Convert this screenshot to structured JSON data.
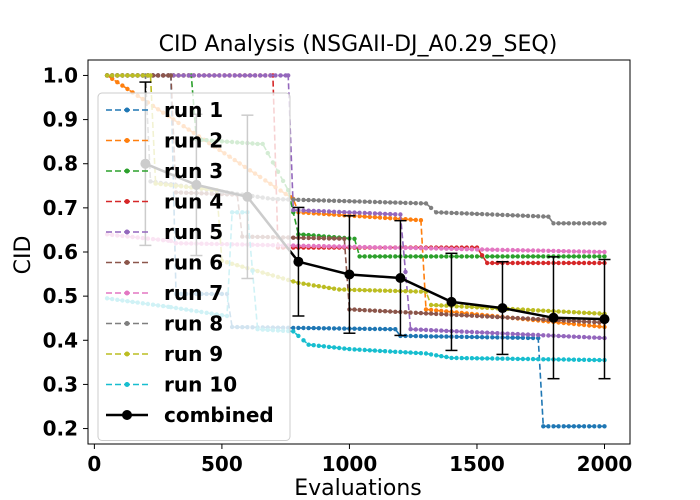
{
  "chart_data": {
    "type": "line",
    "title": "CID Analysis (NSGAII-DJ_A0.29_SEQ)",
    "xlabel": "Evaluations",
    "ylabel": "CID",
    "xlim": [
      -25,
      2100
    ],
    "ylim": [
      0.165,
      1.035
    ],
    "xticks": [
      0,
      500,
      1000,
      1500,
      2000
    ],
    "xtick_labels": [
      "0",
      "500",
      "1000",
      "1500",
      "2000"
    ],
    "yticks": [
      0.2,
      0.3,
      0.4,
      0.5,
      0.6,
      0.7,
      0.8,
      0.9,
      1.0
    ],
    "ytick_labels": [
      "0.2",
      "0.3",
      "0.4",
      "0.5",
      "0.6",
      "0.7",
      "0.8",
      "0.9",
      "1.0"
    ],
    "grid": false,
    "legend": "upper left",
    "series": [
      {
        "name": "run 1",
        "color": "#1f77b4",
        "points": [
          [
            50,
            1.0
          ],
          [
            300,
            1.0
          ],
          [
            320,
            0.505
          ],
          [
            520,
            0.505
          ],
          [
            540,
            0.43
          ],
          [
            1180,
            0.425
          ],
          [
            1200,
            0.41
          ],
          [
            1740,
            0.405
          ],
          [
            1760,
            0.205
          ],
          [
            2000,
            0.205
          ]
        ]
      },
      {
        "name": "run 2",
        "color": "#ff7f0e",
        "points": [
          [
            50,
            1.0
          ],
          [
            780,
            0.72
          ],
          [
            800,
            0.69
          ],
          [
            1280,
            0.672
          ],
          [
            1300,
            0.47
          ],
          [
            2000,
            0.43
          ]
        ]
      },
      {
        "name": "run 3",
        "color": "#2ca02c",
        "points": [
          [
            50,
            1.0
          ],
          [
            380,
            1.0
          ],
          [
            400,
            0.855
          ],
          [
            640,
            0.845
          ],
          [
            660,
            0.845
          ],
          [
            760,
            0.74
          ],
          [
            800,
            0.64
          ],
          [
            1020,
            0.63
          ],
          [
            1040,
            0.59
          ],
          [
            2000,
            0.59
          ]
        ]
      },
      {
        "name": "run 4",
        "color": "#d62728",
        "points": [
          [
            50,
            1.0
          ],
          [
            700,
            1.0
          ],
          [
            720,
            0.61
          ],
          [
            1500,
            0.61
          ],
          [
            1540,
            0.575
          ],
          [
            2000,
            0.575
          ]
        ]
      },
      {
        "name": "run 5",
        "color": "#9467bd",
        "points": [
          [
            50,
            1.0
          ],
          [
            760,
            1.0
          ],
          [
            780,
            0.695
          ],
          [
            1200,
            0.685
          ],
          [
            1240,
            0.425
          ],
          [
            2000,
            0.405
          ]
        ]
      },
      {
        "name": "run 6",
        "color": "#8c564b",
        "points": [
          [
            50,
            1.0
          ],
          [
            300,
            1.0
          ],
          [
            320,
            0.735
          ],
          [
            560,
            0.73
          ],
          [
            580,
            0.635
          ],
          [
            980,
            0.63
          ],
          [
            1000,
            0.47
          ],
          [
            2000,
            0.44
          ]
        ]
      },
      {
        "name": "run 7",
        "color": "#e377c2",
        "points": [
          [
            50,
            0.64
          ],
          [
            300,
            0.625
          ],
          [
            320,
            0.62
          ],
          [
            2000,
            0.6
          ]
        ]
      },
      {
        "name": "run 8",
        "color": "#7f7f7f",
        "points": [
          [
            50,
            1.0
          ],
          [
            200,
            1.0
          ],
          [
            220,
            0.76
          ],
          [
            700,
            0.72
          ],
          [
            1300,
            0.71
          ],
          [
            1340,
            0.69
          ],
          [
            1780,
            0.68
          ],
          [
            1800,
            0.665
          ],
          [
            2000,
            0.665
          ]
        ]
      },
      {
        "name": "run 9",
        "color": "#bcbd22",
        "points": [
          [
            50,
            1.0
          ],
          [
            220,
            1.0
          ],
          [
            240,
            0.755
          ],
          [
            480,
            0.74
          ],
          [
            500,
            0.58
          ],
          [
            740,
            0.54
          ],
          [
            800,
            0.53
          ],
          [
            960,
            0.515
          ],
          [
            1300,
            0.51
          ],
          [
            1320,
            0.48
          ],
          [
            2000,
            0.46
          ]
        ]
      },
      {
        "name": "run 10",
        "color": "#17becf",
        "points": [
          [
            50,
            0.495
          ],
          [
            300,
            0.475
          ],
          [
            520,
            0.455
          ],
          [
            540,
            0.69
          ],
          [
            600,
            0.69
          ],
          [
            640,
            0.425
          ],
          [
            780,
            0.42
          ],
          [
            840,
            0.39
          ],
          [
            1000,
            0.38
          ],
          [
            1300,
            0.37
          ],
          [
            1400,
            0.36
          ],
          [
            2000,
            0.355
          ]
        ]
      }
    ],
    "combined": {
      "name": "combined",
      "color": "#000000",
      "x": [
        200,
        400,
        600,
        800,
        1000,
        1200,
        1400,
        1600,
        1800,
        2000
      ],
      "y": [
        0.8,
        0.752,
        0.725,
        0.578,
        0.549,
        0.541,
        0.487,
        0.473,
        0.451,
        0.448
      ],
      "err": [
        0.185,
        0.16,
        0.185,
        0.123,
        0.133,
        0.13,
        0.11,
        0.105,
        0.138,
        0.135
      ]
    }
  }
}
